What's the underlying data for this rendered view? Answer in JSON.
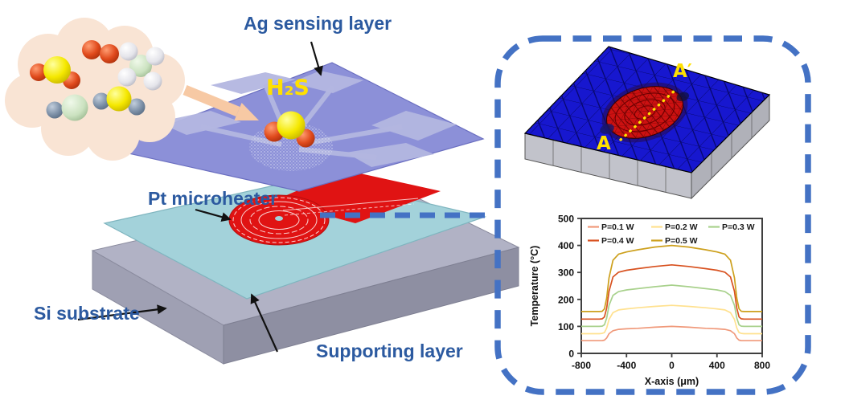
{
  "figure": {
    "left_labels": {
      "ag_sensing_layer": "Ag sensing layer",
      "h2s": "H₂S",
      "pt_microheater": "Pt microheater",
      "si_substrate": "Si substrate",
      "supporting_layer": "Supporting layer"
    },
    "mesh_view": {
      "a_label": "A",
      "a_prime_label": "A′"
    },
    "colors": {
      "annotation_text": "#2C5AA0",
      "h2s_label": "#FFE000",
      "dashed_box": "#4472C4",
      "sensing_layer_purple": "#8C90D8",
      "supporting_layer_teal": "#A3D2DA",
      "substrate_gray": "#B1B2C5",
      "heater_red": "#E01313",
      "mesh_plate_blue": "#1717CF",
      "mesh_hot_zone_red": "#CC1111",
      "section_line_yellow": "#FFE000",
      "gas_cloud_peach": "#F9E4D4"
    }
  },
  "chart_data": {
    "type": "line",
    "title": "",
    "xlabel": "X-axis (μm)",
    "ylabel": "Temperature (°C)",
    "xlim": [
      -800,
      800
    ],
    "ylim": [
      0,
      500
    ],
    "xticks": [
      -800,
      -400,
      0,
      400,
      800
    ],
    "yticks": [
      0,
      100,
      200,
      300,
      400,
      500
    ],
    "grid": false,
    "legend_position": "top-left-inside",
    "x": [
      -800,
      -640,
      -615,
      -595,
      -575,
      -555,
      -520,
      -470,
      -400,
      -300,
      -150,
      0,
      150,
      300,
      400,
      470,
      520,
      555,
      575,
      595,
      615,
      640,
      800
    ],
    "series": [
      {
        "name": "P=0.1 W",
        "color": "#F0997A",
        "values": [
          47,
          47,
          47,
          49,
          57,
          73,
          84,
          89,
          91,
          93,
          97,
          100,
          97,
          93,
          91,
          89,
          84,
          73,
          57,
          49,
          47,
          47,
          47
        ]
      },
      {
        "name": "P=0.2 W",
        "color": "#FFE18F",
        "values": [
          73,
          73,
          74,
          77,
          94,
          126,
          151,
          161,
          165,
          169,
          174,
          178,
          174,
          169,
          165,
          161,
          151,
          126,
          94,
          77,
          74,
          73,
          73
        ]
      },
      {
        "name": "P=0.3 W",
        "color": "#A8D18C",
        "values": [
          100,
          100,
          101,
          106,
          131,
          178,
          215,
          229,
          235,
          240,
          247,
          253,
          247,
          240,
          235,
          229,
          215,
          178,
          131,
          106,
          101,
          100,
          100
        ]
      },
      {
        "name": "P=0.4 W",
        "color": "#D8511F",
        "values": [
          127,
          127,
          128,
          135,
          168,
          230,
          283,
          301,
          308,
          314,
          322,
          328,
          322,
          314,
          308,
          301,
          283,
          230,
          168,
          135,
          128,
          127,
          127
        ]
      },
      {
        "name": "P=0.5 W",
        "color": "#CDA01D",
        "values": [
          155,
          155,
          156,
          165,
          205,
          280,
          345,
          368,
          376,
          384,
          394,
          400,
          394,
          384,
          376,
          368,
          345,
          280,
          205,
          165,
          156,
          155,
          155
        ]
      }
    ]
  }
}
